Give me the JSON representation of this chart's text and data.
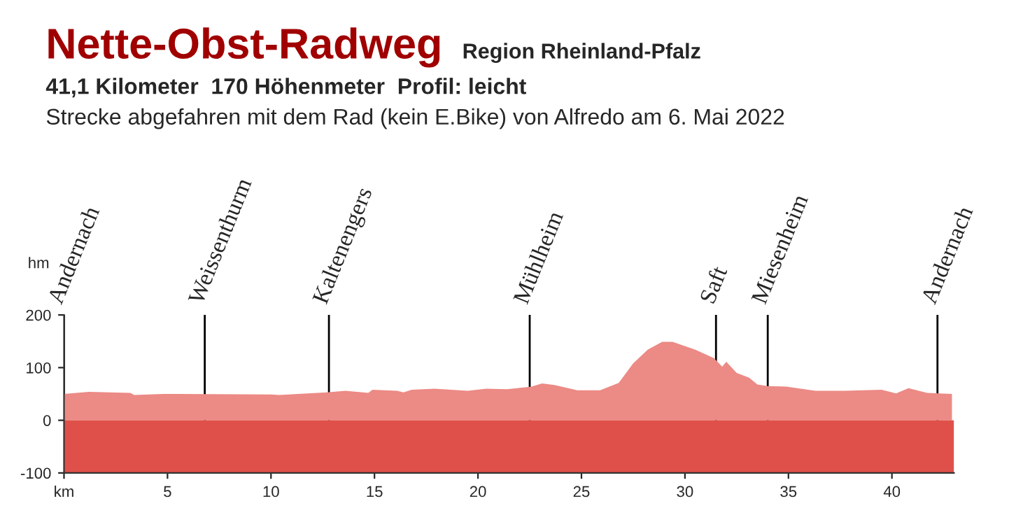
{
  "chart_data": {
    "type": "area",
    "title": "Nette-Obst-Radweg",
    "subtitle": "Region Rheinland-Pfalz",
    "annotations": [
      "41,1 Kilometer  170 Höhenmeter  Profil: leicht",
      "Strecke abgefahren mit dem Rad (kein E.Bike) von Alfredo am 6. Mai 2022"
    ],
    "ylabel": "hm",
    "x": [
      0,
      1.2,
      3.2,
      3.4,
      4.8,
      10,
      10.4,
      12.7,
      13.6,
      14.7,
      14.9,
      16.1,
      16.4,
      16.8,
      17.9,
      19.5,
      20.4,
      21.4,
      22.6,
      23.1,
      23.7,
      24.8,
      25.9,
      26.8,
      27.5,
      28.2,
      28.9,
      29.4,
      30.5,
      31.4,
      31.8,
      32.0,
      32.5,
      33.1,
      33.5,
      34.0,
      34.9,
      36.3,
      37.7,
      39.5,
      40.2,
      40.8,
      41.7,
      42.9
    ],
    "series": [
      {
        "color": "#ec8a85",
        "values": [
          50,
          54,
          52,
          48,
          50,
          49,
          48,
          53,
          56,
          52,
          58,
          56,
          53,
          58,
          60,
          56,
          60,
          59,
          64,
          70,
          67,
          57,
          57,
          71,
          108,
          134,
          149,
          149,
          134,
          118,
          102,
          111,
          90,
          81,
          68,
          65,
          64,
          56,
          56,
          58,
          51,
          61,
          52,
          50
        ]
      }
    ],
    "xlim": [
      0,
      43
    ],
    "ylim": [
      -100,
      200
    ],
    "xticks": [
      {
        "value": 0,
        "label": "km"
      },
      5,
      10,
      15,
      20,
      25,
      30,
      35,
      40
    ],
    "yticks": [
      -100,
      0,
      100,
      200
    ],
    "bands": [
      {
        "axis": "y",
        "from": -100,
        "to": 0,
        "color": "#e0504a"
      }
    ],
    "ref_lines": [
      {
        "axis": "x",
        "value": 0,
        "label": "Andernach",
        "color": "#000000"
      },
      {
        "axis": "x",
        "value": 6.8,
        "label": "Weissenthurm",
        "color": "#000000"
      },
      {
        "axis": "x",
        "value": 12.8,
        "label": "Kaltenengers",
        "color": "#000000"
      },
      {
        "axis": "x",
        "value": 22.5,
        "label": "Mühlheim",
        "color": "#000000"
      },
      {
        "axis": "x",
        "value": 31.5,
        "label": "Saft",
        "color": "#000000"
      },
      {
        "axis": "x",
        "value": 34.0,
        "label": "Miesenheim",
        "color": "#000000"
      },
      {
        "axis": "x",
        "value": 42.2,
        "label": "Andernach",
        "color": "#000000"
      }
    ]
  }
}
